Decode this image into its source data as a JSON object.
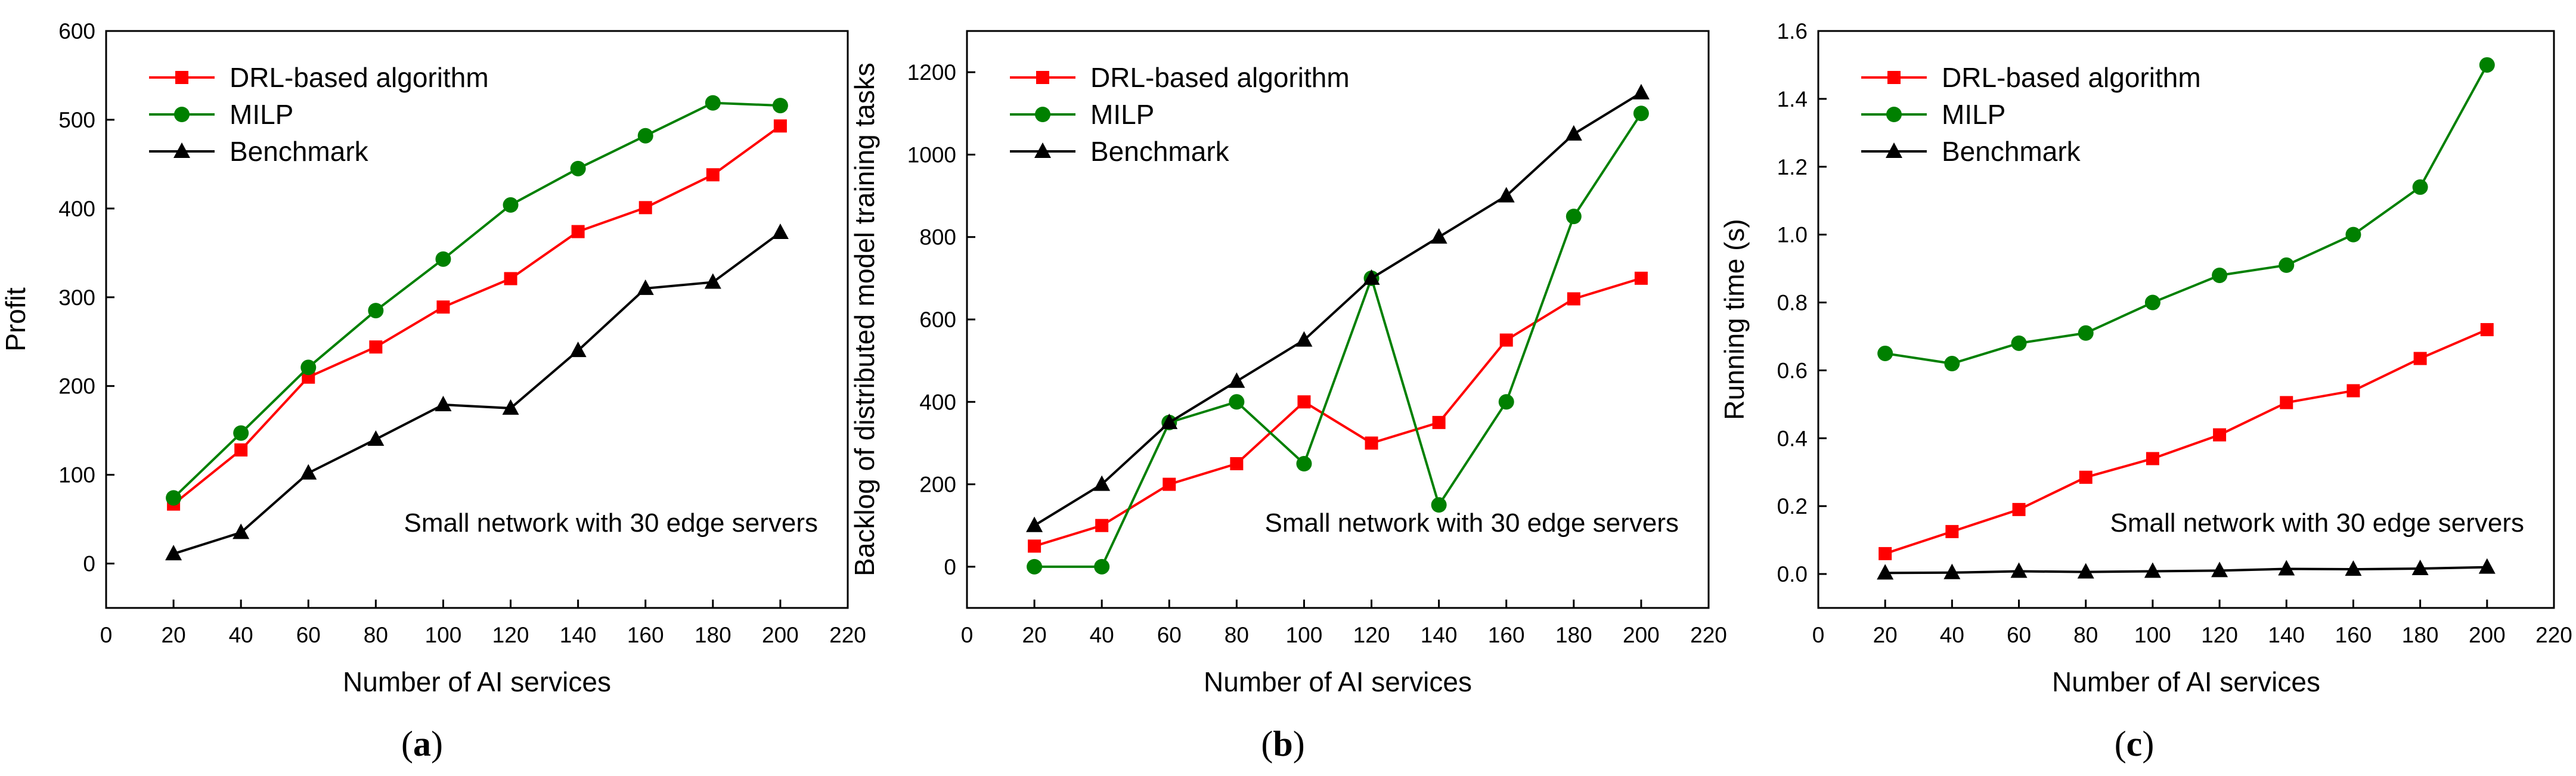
{
  "chart_data": [
    {
      "type": "line",
      "panel_label": "a",
      "title": "",
      "xlabel": "Number of AI services",
      "ylabel": "Profit",
      "xlim": [
        0,
        220
      ],
      "ylim": [
        -50,
        600
      ],
      "xticks": [
        0,
        20,
        40,
        60,
        80,
        100,
        120,
        140,
        160,
        180,
        200,
        220
      ],
      "yticks": [
        0,
        100,
        200,
        300,
        400,
        500,
        600
      ],
      "annotation": "Small network with 30 edge servers",
      "legend_position": "top-left",
      "x": [
        20,
        40,
        60,
        80,
        100,
        120,
        140,
        160,
        180,
        200
      ],
      "series": [
        {
          "name": "DRL-based algorithm",
          "color": "#ff0000",
          "marker": "square",
          "values": [
            67,
            128,
            210,
            244,
            289,
            321,
            374,
            401,
            438,
            493
          ]
        },
        {
          "name": "MILP",
          "color": "#008000",
          "marker": "circle",
          "values": [
            74,
            147,
            221,
            285,
            343,
            404,
            445,
            482,
            519,
            516
          ]
        },
        {
          "name": "Benchmark",
          "color": "#000000",
          "marker": "triangle",
          "values": [
            11,
            35,
            102,
            140,
            179,
            175,
            240,
            310,
            317,
            373
          ]
        }
      ]
    },
    {
      "type": "line",
      "panel_label": "b",
      "title": "",
      "xlabel": "Number of AI services",
      "ylabel": "Backlog of distributed model training tasks",
      "xlim": [
        0,
        220
      ],
      "ylim": [
        -100,
        1300
      ],
      "xticks": [
        0,
        20,
        40,
        60,
        80,
        100,
        120,
        140,
        160,
        180,
        200,
        220
      ],
      "yticks": [
        0,
        200,
        400,
        600,
        800,
        1000,
        1200
      ],
      "annotation": "Small network with 30 edge servers",
      "legend_position": "top-left",
      "x": [
        20,
        40,
        60,
        80,
        100,
        120,
        140,
        160,
        180,
        200
      ],
      "series": [
        {
          "name": "DRL-based algorithm",
          "color": "#ff0000",
          "marker": "square",
          "values": [
            50,
            100,
            200,
            250,
            400,
            300,
            350,
            550,
            650,
            700
          ]
        },
        {
          "name": "MILP",
          "color": "#008000",
          "marker": "circle",
          "values": [
            0,
            0,
            350,
            400,
            250,
            700,
            150,
            400,
            850,
            1100
          ]
        },
        {
          "name": "Benchmark",
          "color": "#000000",
          "marker": "triangle",
          "values": [
            100,
            200,
            350,
            450,
            550,
            700,
            800,
            900,
            1050,
            1150
          ]
        }
      ]
    },
    {
      "type": "line",
      "panel_label": "c",
      "title": "",
      "xlabel": "Number of AI services",
      "ylabel": "Running time (s)",
      "xlim": [
        0,
        220
      ],
      "ylim": [
        -0.1,
        1.6
      ],
      "xticks": [
        0,
        20,
        40,
        60,
        80,
        100,
        120,
        140,
        160,
        180,
        200,
        220
      ],
      "yticks": [
        0.0,
        0.2,
        0.4,
        0.6,
        0.8,
        1.0,
        1.2,
        1.4,
        1.6
      ],
      "ytick_labels": [
        "0.0",
        "0.2",
        "0.4",
        "0.6",
        "0.8",
        "1.0",
        "1.2",
        "1.4",
        "1.6"
      ],
      "annotation": "Small network with 30 edge servers",
      "legend_position": "top-left",
      "x": [
        20,
        40,
        60,
        80,
        100,
        120,
        140,
        160,
        180,
        200
      ],
      "series": [
        {
          "name": "DRL-based algorithm",
          "color": "#ff0000",
          "marker": "square",
          "values": [
            0.06,
            0.125,
            0.19,
            0.285,
            0.34,
            0.41,
            0.505,
            0.54,
            0.635,
            0.72
          ]
        },
        {
          "name": "MILP",
          "color": "#008000",
          "marker": "circle",
          "values": [
            0.65,
            0.62,
            0.68,
            0.71,
            0.8,
            0.88,
            0.91,
            1.0,
            1.14,
            1.5
          ]
        },
        {
          "name": "Benchmark",
          "color": "#000000",
          "marker": "triangle",
          "values": [
            0.003,
            0.004,
            0.008,
            0.006,
            0.008,
            0.01,
            0.015,
            0.014,
            0.016,
            0.02
          ]
        }
      ]
    }
  ]
}
